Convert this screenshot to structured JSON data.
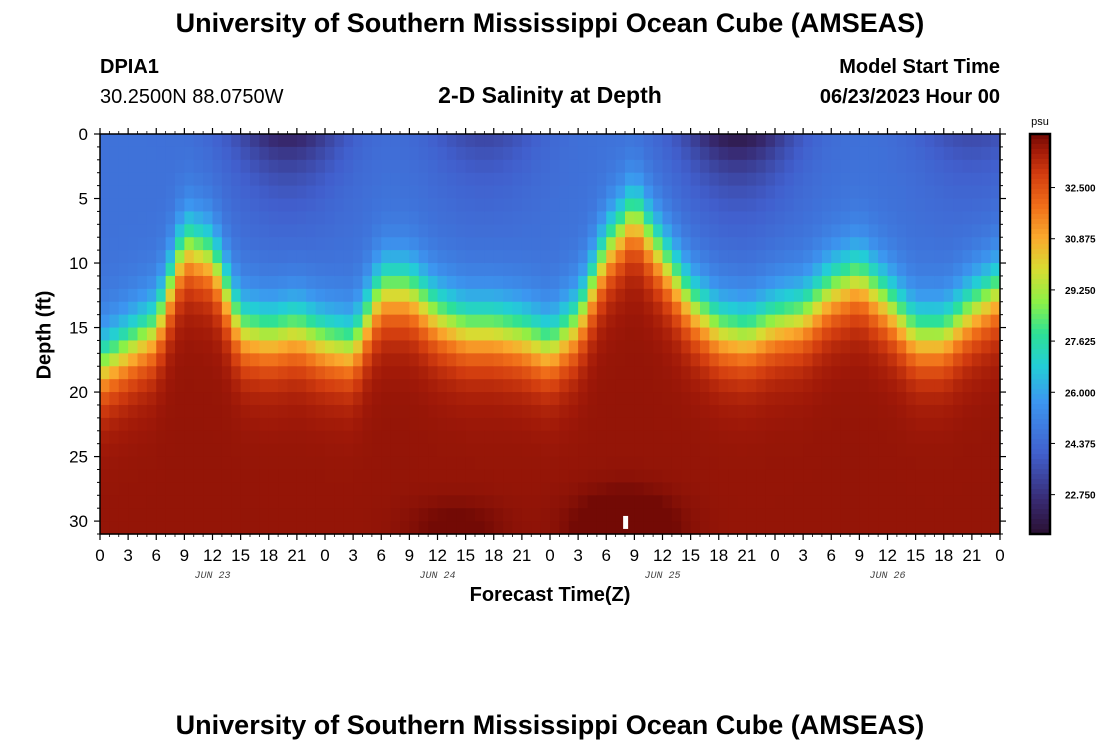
{
  "header": {
    "title": "University of Southern Mississippi Ocean Cube (AMSEAS)",
    "station": "DPIA1",
    "coords": "30.2500N  88.0750W",
    "subtitle": "2-D Salinity at Depth",
    "model_start_label": "Model Start Time",
    "model_start_value": "06/23/2023 Hour 00"
  },
  "footer": {
    "title": "University of Southern Mississippi Ocean Cube (AMSEAS)"
  },
  "chart_data": {
    "type": "heatmap",
    "title": "2-D Salinity at Depth",
    "xlabel": "Forecast Time(Z)",
    "ylabel": "Depth (ft)",
    "x_tick_labels": [
      "0",
      "3",
      "6",
      "9",
      "12",
      "15",
      "18",
      "21",
      "0",
      "3",
      "6",
      "9",
      "12",
      "15",
      "18",
      "21",
      "0",
      "3",
      "6",
      "9",
      "12",
      "15",
      "18",
      "21",
      "0",
      "3",
      "6",
      "9",
      "12",
      "15",
      "18",
      "21",
      "0"
    ],
    "x_range_hours": [
      0,
      96
    ],
    "day_labels": [
      {
        "label": "JUN 23",
        "hour": 12
      },
      {
        "label": "JUN 24",
        "hour": 36
      },
      {
        "label": "JUN 25",
        "hour": 60
      },
      {
        "label": "JUN 26",
        "hour": 84
      }
    ],
    "y_ticks": [
      0,
      5,
      10,
      15,
      20,
      25,
      30
    ],
    "y_range_ft": [
      0,
      31
    ],
    "colorbar": {
      "unit": "psu",
      "ticks": [
        "32.500",
        "30.875",
        "29.250",
        "27.625",
        "26.000",
        "24.375",
        "22.750"
      ],
      "range": [
        21.5,
        34.2
      ]
    },
    "halocline_depth_ft": [
      {
        "hour": 0,
        "depth": 18.0
      },
      {
        "hour": 6,
        "depth": 15.0
      },
      {
        "hour": 9,
        "depth": 8.5
      },
      {
        "hour": 12,
        "depth": 9.5
      },
      {
        "hour": 15,
        "depth": 15.0
      },
      {
        "hour": 18,
        "depth": 15.5
      },
      {
        "hour": 21,
        "depth": 15.0
      },
      {
        "hour": 24,
        "depth": 16.0
      },
      {
        "hour": 27,
        "depth": 16.5
      },
      {
        "hour": 30,
        "depth": 12.0
      },
      {
        "hour": 33,
        "depth": 12.0
      },
      {
        "hour": 36,
        "depth": 14.0
      },
      {
        "hour": 39,
        "depth": 15.0
      },
      {
        "hour": 42,
        "depth": 15.0
      },
      {
        "hour": 45,
        "depth": 15.5
      },
      {
        "hour": 48,
        "depth": 16.5
      },
      {
        "hour": 51,
        "depth": 14.5
      },
      {
        "hour": 54,
        "depth": 9.0
      },
      {
        "hour": 57,
        "depth": 6.0
      },
      {
        "hour": 60,
        "depth": 9.5
      },
      {
        "hour": 63,
        "depth": 13.0
      },
      {
        "hour": 66,
        "depth": 15.0
      },
      {
        "hour": 69,
        "depth": 15.5
      },
      {
        "hour": 72,
        "depth": 14.5
      },
      {
        "hour": 75,
        "depth": 14.0
      },
      {
        "hour": 78,
        "depth": 12.0
      },
      {
        "hour": 81,
        "depth": 11.0
      },
      {
        "hour": 84,
        "depth": 13.0
      },
      {
        "hour": 87,
        "depth": 15.5
      },
      {
        "hour": 90,
        "depth": 15.5
      },
      {
        "hour": 93,
        "depth": 13.5
      },
      {
        "hour": 96,
        "depth": 12.0
      }
    ]
  }
}
